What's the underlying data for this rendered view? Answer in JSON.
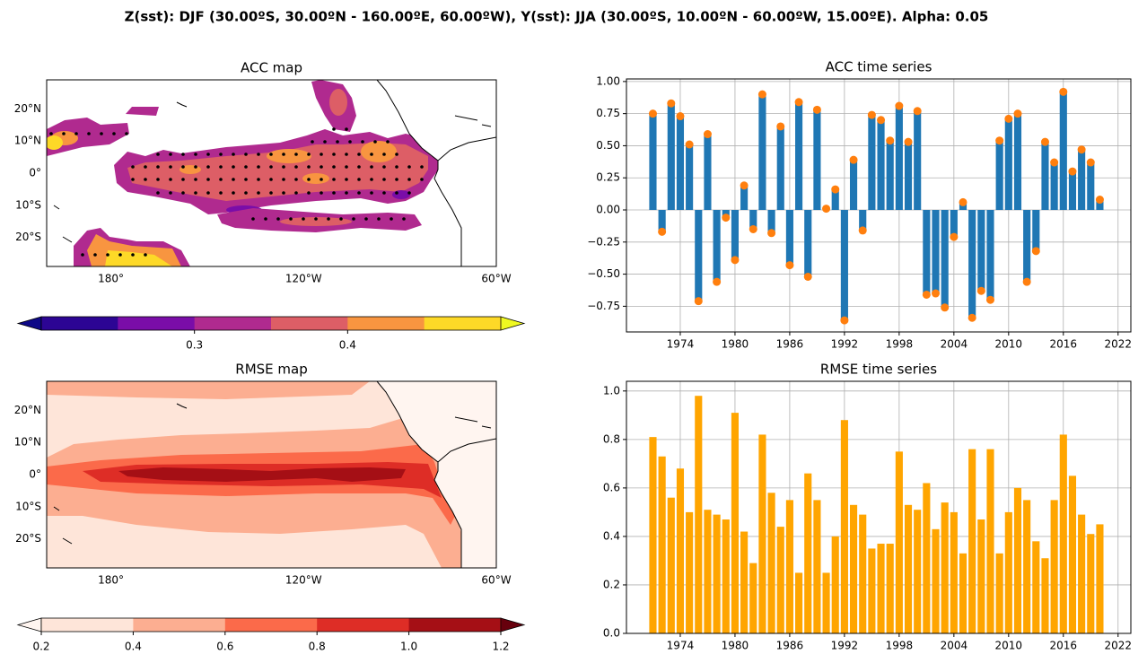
{
  "title": "Z(sst): DJF (30.00ºS, 30.00ºN - 160.00ºE, 60.00ºW), Y(sst): JJA (30.00ºS, 10.00ºN - 60.00ºW, 15.00ºE). Alpha: 0.05",
  "chart_data": [
    {
      "type": "map",
      "title": "ACC map",
      "xlim": [
        160,
        300
      ],
      "ylim": [
        -29,
        29
      ],
      "xticks": [
        {
          "value": 180,
          "label": "180°"
        },
        {
          "value": 240,
          "label": "120°W"
        },
        {
          "value": 300,
          "label": "60°W"
        }
      ],
      "yticks": [
        {
          "value": 20,
          "label": "20°N"
        },
        {
          "value": 10,
          "label": "10°N"
        },
        {
          "value": 0,
          "label": "0°"
        },
        {
          "value": -10,
          "label": "10°S"
        },
        {
          "value": -20,
          "label": "20°S"
        }
      ],
      "colorbar": {
        "lim": [
          0.2,
          0.5
        ],
        "colors": [
          "#2c0594",
          "#7a0da8",
          "#b02a8f",
          "#dd5e66",
          "#f89540",
          "#fdd927"
        ],
        "under": "#0d0887",
        "over": "#f0f921",
        "ticks": [
          0.3,
          0.4
        ]
      }
    },
    {
      "type": "bar",
      "title": "ACC time series",
      "x": [
        1971,
        1972,
        1973,
        1974,
        1975,
        1976,
        1977,
        1978,
        1979,
        1980,
        1981,
        1982,
        1983,
        1984,
        1985,
        1986,
        1987,
        1988,
        1989,
        1990,
        1991,
        1992,
        1993,
        1994,
        1995,
        1996,
        1997,
        1998,
        1999,
        2000,
        2001,
        2002,
        2003,
        2004,
        2005,
        2006,
        2007,
        2008,
        2009,
        2010,
        2011,
        2012,
        2013,
        2014,
        2015,
        2016,
        2017,
        2018,
        2019,
        2020
      ],
      "values": [
        0.75,
        -0.17,
        0.83,
        0.73,
        0.51,
        -0.71,
        0.59,
        -0.56,
        -0.06,
        -0.39,
        0.19,
        -0.15,
        0.9,
        -0.18,
        0.65,
        -0.43,
        0.84,
        -0.52,
        0.78,
        0.01,
        0.16,
        -0.86,
        0.39,
        -0.16,
        0.74,
        0.7,
        0.54,
        0.81,
        0.53,
        0.77,
        -0.66,
        -0.65,
        -0.76,
        -0.21,
        0.06,
        -0.84,
        -0.63,
        -0.7,
        0.54,
        0.71,
        0.75,
        -0.56,
        -0.32,
        0.53,
        0.37,
        0.92,
        0.3,
        0.47,
        0.37,
        0.08
      ],
      "color": "#1f77b4",
      "marker_color": "#ff7f0e",
      "xlim": [
        1968.1,
        2023.4
      ],
      "ylim": [
        -0.95,
        1.02
      ],
      "xticks": [
        1974,
        1980,
        1986,
        1992,
        1998,
        2004,
        2010,
        2016,
        2022
      ],
      "yticks": [
        {
          "value": 1,
          "label": "1.00"
        },
        {
          "value": 0.75,
          "label": "0.75"
        },
        {
          "value": 0.5,
          "label": "0.50"
        },
        {
          "value": 0.25,
          "label": "0.25"
        },
        {
          "value": 0,
          "label": "0.00"
        },
        {
          "value": -0.25,
          "label": "−0.25"
        },
        {
          "value": -0.5,
          "label": "−0.50"
        },
        {
          "value": -0.75,
          "label": "−0.75"
        }
      ],
      "grid": true
    },
    {
      "type": "map",
      "title": "RMSE map",
      "xlim": [
        160,
        300
      ],
      "ylim": [
        -29,
        29
      ],
      "xticks": [
        {
          "value": 180,
          "label": "180°"
        },
        {
          "value": 240,
          "label": "120°W"
        },
        {
          "value": 300,
          "label": "60°W"
        }
      ],
      "yticks": [
        {
          "value": 20,
          "label": "20°N"
        },
        {
          "value": 10,
          "label": "10°N"
        },
        {
          "value": 0,
          "label": "0°"
        },
        {
          "value": -10,
          "label": "10°S"
        },
        {
          "value": -20,
          "label": "20°S"
        }
      ],
      "colorbar": {
        "lim": [
          0.2,
          1.2
        ],
        "colors": [
          "#fee5d9",
          "#fcae91",
          "#fb6a4a",
          "#de2d26",
          "#a50f15"
        ],
        "under": "#fff5f0",
        "over": "#67000d",
        "ticks": [
          0.2,
          0.4,
          0.6,
          0.8,
          {
            "value": 1,
            "label": "1.0"
          },
          1.2
        ]
      }
    },
    {
      "type": "bar",
      "title": "RMSE time series",
      "x": [
        1971,
        1972,
        1973,
        1974,
        1975,
        1976,
        1977,
        1978,
        1979,
        1980,
        1981,
        1982,
        1983,
        1984,
        1985,
        1986,
        1987,
        1988,
        1989,
        1990,
        1991,
        1992,
        1993,
        1994,
        1995,
        1996,
        1997,
        1998,
        1999,
        2000,
        2001,
        2002,
        2003,
        2004,
        2005,
        2006,
        2007,
        2008,
        2009,
        2010,
        2011,
        2012,
        2013,
        2014,
        2015,
        2016,
        2017,
        2018,
        2019,
        2020
      ],
      "values": [
        0.81,
        0.73,
        0.56,
        0.68,
        0.5,
        0.98,
        0.51,
        0.49,
        0.47,
        0.91,
        0.42,
        0.29,
        0.82,
        0.58,
        0.44,
        0.55,
        0.25,
        0.66,
        0.55,
        0.25,
        0.4,
        0.88,
        0.53,
        0.49,
        0.35,
        0.37,
        0.37,
        0.75,
        0.53,
        0.51,
        0.62,
        0.43,
        0.54,
        0.5,
        0.33,
        0.76,
        0.47,
        0.76,
        0.33,
        0.5,
        0.6,
        0.55,
        0.38,
        0.31,
        0.55,
        0.82,
        0.65,
        0.49,
        0.41,
        0.45
      ],
      "color": "#ffa500",
      "xlim": [
        1968.1,
        2023.4
      ],
      "ylim": [
        0,
        1.04
      ],
      "xticks": [
        1974,
        1980,
        1986,
        1992,
        1998,
        2004,
        2010,
        2016,
        2022
      ],
      "yticks": [
        {
          "value": 0,
          "label": "0.0"
        },
        0.2,
        0.4,
        0.6,
        0.8,
        {
          "value": 1,
          "label": "1.0"
        }
      ],
      "grid": true
    }
  ]
}
